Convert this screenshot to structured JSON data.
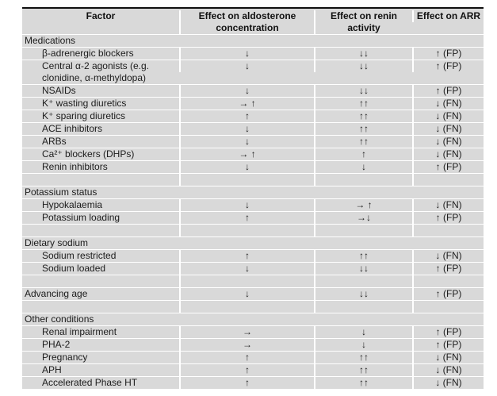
{
  "page": {
    "background_color": "#ffffff",
    "table_background_color": "#d9d9d9",
    "separator_color": "#ffffff",
    "top_border_color": "#101010"
  },
  "table": {
    "columns": [
      {
        "label": "Factor"
      },
      {
        "label": "Effect on aldosterone concentration"
      },
      {
        "label": "Effect on renin activity"
      },
      {
        "label": "Effect on ARR"
      }
    ],
    "rows": [
      {
        "type": "section",
        "factor": "Medications",
        "aldo": "",
        "renin": "",
        "arr": ""
      },
      {
        "type": "item",
        "factor": "β-adrenergic blockers",
        "aldo": "↓",
        "renin": "↓↓",
        "arr": "↑ (FP)"
      },
      {
        "type": "item",
        "factor": "Central α-2 agonists (e.g. clonidine, α-methyldopa)",
        "aldo": "↓",
        "renin": "↓↓",
        "arr": "↑ (FP)"
      },
      {
        "type": "item",
        "factor": "NSAIDs",
        "aldo": "↓",
        "renin": "↓↓",
        "arr": "↑ (FP)"
      },
      {
        "type": "item",
        "factor": "K⁺ wasting diuretics",
        "aldo": "→ ↑",
        "renin": "↑↑",
        "arr": "↓ (FN)"
      },
      {
        "type": "item",
        "factor": "K⁺ sparing diuretics",
        "aldo": "↑",
        "renin": "↑↑",
        "arr": "↓ (FN)"
      },
      {
        "type": "item",
        "factor": "ACE inhibitors",
        "aldo": "↓",
        "renin": "↑↑",
        "arr": "↓ (FN)"
      },
      {
        "type": "item",
        "factor": "ARBs",
        "aldo": "↓",
        "renin": "↑↑",
        "arr": "↓ (FN)"
      },
      {
        "type": "item",
        "factor": "Ca²⁺ blockers (DHPs)",
        "aldo": "→ ↑",
        "renin": "↑",
        "arr": "↓ (FN)"
      },
      {
        "type": "item",
        "factor": "Renin inhibitors",
        "aldo": "↓",
        "renin": "↓",
        "arr": "↑ (FP)"
      },
      {
        "type": "blank",
        "factor": "",
        "aldo": "",
        "renin": "",
        "arr": ""
      },
      {
        "type": "section",
        "factor": "Potassium status",
        "aldo": "",
        "renin": "",
        "arr": ""
      },
      {
        "type": "item",
        "factor": "Hypokalaemia",
        "aldo": "↓",
        "renin": "→ ↑",
        "arr": "↓ (FN)"
      },
      {
        "type": "item",
        "factor": "Potassium loading",
        "aldo": "↑",
        "renin": "→↓",
        "arr": "↑ (FP)"
      },
      {
        "type": "blank",
        "factor": "",
        "aldo": "",
        "renin": "",
        "arr": ""
      },
      {
        "type": "section",
        "factor": "Dietary sodium",
        "aldo": "",
        "renin": "",
        "arr": ""
      },
      {
        "type": "item",
        "factor": "Sodium restricted",
        "aldo": "↑",
        "renin": "↑↑",
        "arr": "↓ (FN)"
      },
      {
        "type": "item",
        "factor": "Sodium loaded",
        "aldo": "↓",
        "renin": "↓↓",
        "arr": "↑ (FP)"
      },
      {
        "type": "blank",
        "factor": "",
        "aldo": "",
        "renin": "",
        "arr": ""
      },
      {
        "type": "standalone",
        "factor": "Advancing age",
        "aldo": "↓",
        "renin": "↓↓",
        "arr": "↑ (FP)"
      },
      {
        "type": "blank",
        "factor": "",
        "aldo": "",
        "renin": "",
        "arr": ""
      },
      {
        "type": "section",
        "factor": "Other conditions",
        "aldo": "",
        "renin": "",
        "arr": ""
      },
      {
        "type": "item",
        "factor": "Renal impairment",
        "aldo": "→",
        "renin": "↓",
        "arr": "↑ (FP)"
      },
      {
        "type": "item",
        "factor": "PHA-2",
        "aldo": "→",
        "renin": "↓",
        "arr": "↑ (FP)"
      },
      {
        "type": "item",
        "factor": "Pregnancy",
        "aldo": "↑",
        "renin": "↑↑",
        "arr": "↓ (FN)"
      },
      {
        "type": "item",
        "factor": "APH",
        "aldo": "↑",
        "renin": "↑↑",
        "arr": "↓ (FN)"
      },
      {
        "type": "item",
        "factor": "Accelerated Phase HT",
        "aldo": "↑",
        "renin": "↑↑",
        "arr": "↓ (FN)"
      }
    ]
  },
  "chart_data": {
    "type": "table",
    "title": "",
    "columns": [
      "Factor",
      "Effect on aldosterone concentration",
      "Effect on renin activity",
      "Effect on ARR"
    ],
    "rows": [
      [
        "Medications",
        "",
        "",
        ""
      ],
      [
        "β-adrenergic blockers",
        "↓",
        "↓↓",
        "↑ (FP)"
      ],
      [
        "Central α-2 agonists (e.g. clonidine, α-methyldopa)",
        "↓",
        "↓↓",
        "↑ (FP)"
      ],
      [
        "NSAIDs",
        "↓",
        "↓↓",
        "↑ (FP)"
      ],
      [
        "K⁺ wasting diuretics",
        "→ ↑",
        "↑↑",
        "↓ (FN)"
      ],
      [
        "K⁺ sparing diuretics",
        "↑",
        "↑↑",
        "↓ (FN)"
      ],
      [
        "ACE inhibitors",
        "↓",
        "↑↑",
        "↓ (FN)"
      ],
      [
        "ARBs",
        "↓",
        "↑↑",
        "↓ (FN)"
      ],
      [
        "Ca²⁺ blockers (DHPs)",
        "→ ↑",
        "↑",
        "↓ (FN)"
      ],
      [
        "Renin inhibitors",
        "↓",
        "↓",
        "↑ (FP)"
      ],
      [
        "Potassium status",
        "",
        "",
        ""
      ],
      [
        "Hypokalaemia",
        "↓",
        "→ ↑",
        "↓ (FN)"
      ],
      [
        "Potassium loading",
        "↑",
        "→↓",
        "↑ (FP)"
      ],
      [
        "Dietary sodium",
        "",
        "",
        ""
      ],
      [
        "Sodium restricted",
        "↑",
        "↑↑",
        "↓ (FN)"
      ],
      [
        "Sodium loaded",
        "↓",
        "↓↓",
        "↑ (FP)"
      ],
      [
        "Advancing age",
        "↓",
        "↓↓",
        "↑ (FP)"
      ],
      [
        "Other conditions",
        "",
        "",
        ""
      ],
      [
        "Renal impairment",
        "→",
        "↓",
        "↑ (FP)"
      ],
      [
        "PHA-2",
        "→",
        "↓",
        "↑ (FP)"
      ],
      [
        "Pregnancy",
        "↑",
        "↑↑",
        "↓ (FN)"
      ],
      [
        "APH",
        "↑",
        "↑↑",
        "↓ (FN)"
      ],
      [
        "Accelerated Phase HT",
        "↑",
        "↑↑",
        "↓ (FN)"
      ]
    ]
  }
}
